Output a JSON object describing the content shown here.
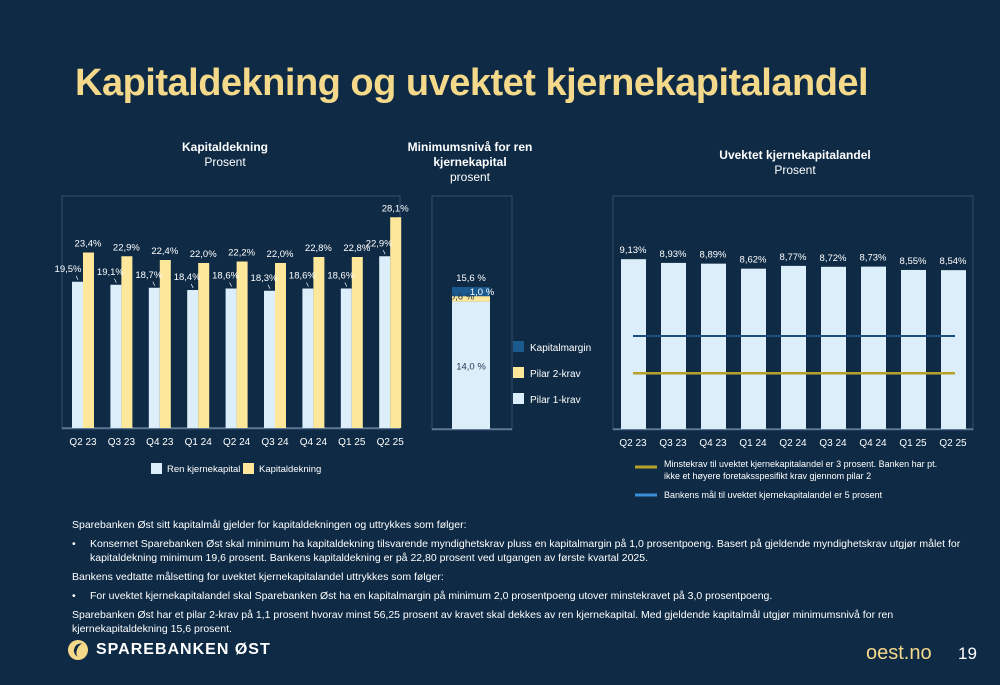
{
  "page": {
    "title": "Kapitaldekning og uvektet kjernekapitalandel",
    "site": "oest.no",
    "page_number": "19",
    "logo_text": "SPAREBANKEN ØST"
  },
  "colors": {
    "background": "#0e2a45",
    "light_blue": "#dceefa",
    "yellow": "#fce79a",
    "dark_blue": "#1a5a8e",
    "gold_line": "#b8a12a",
    "navy_line": "#1d4f7e",
    "title": "#f5d98b"
  },
  "charts_text": {
    "c1_title": "Kapitaldekning",
    "c1_sub": "Prosent",
    "c2_title_1": "Minimumsnivå for ren",
    "c2_title_2": "kjernekapital",
    "c2_sub": "prosent",
    "c3_title": "Uvektet kjernekapitalandel",
    "c3_sub": "Prosent"
  },
  "chart_data": [
    {
      "type": "bar",
      "title": "Kapitaldekning",
      "subtitle": "Prosent",
      "categories": [
        "Q2 23",
        "Q3 23",
        "Q4 23",
        "Q1 24",
        "Q2 24",
        "Q3 24",
        "Q4 24",
        "Q1 25",
        "Q2 25"
      ],
      "series": [
        {
          "name": "Ren kjernekapital",
          "values": [
            19.5,
            19.1,
            18.7,
            18.4,
            18.6,
            18.3,
            18.6,
            18.6,
            22.9
          ],
          "labels": [
            "19,5%",
            "19,1%",
            "18,7%",
            "18,4%",
            "18,6%",
            "18,3%",
            "18,6%",
            "18,6%",
            "22,9%"
          ]
        },
        {
          "name": "Kapitaldekning",
          "values": [
            23.4,
            22.9,
            22.4,
            22.0,
            22.2,
            22.0,
            22.8,
            22.8,
            28.1
          ],
          "labels": [
            "23,4%",
            "22,9%",
            "22,4%",
            "22,0%",
            "22,2%",
            "22,0%",
            "22,8%",
            "22,8%",
            "28,1%"
          ]
        }
      ],
      "legend": "bottom"
    },
    {
      "type": "bar",
      "stacked": true,
      "title": "Minimumsnivå for ren kjernekapital",
      "subtitle": "prosent",
      "total_label": "15,6 %",
      "series": [
        {
          "name": "Pilar 1-krav",
          "value": 14.0,
          "label": "14,0 %"
        },
        {
          "name": "Pilar 2-krav",
          "value": 0.6,
          "label": "0,6 %"
        },
        {
          "name": "Kapitalmargin",
          "value": 1.0,
          "label": "1,0 %"
        }
      ],
      "legend_order": [
        "Kapitalmargin",
        "Pilar 2-krav",
        "Pilar 1-krav"
      ],
      "legend": "right"
    },
    {
      "type": "bar",
      "title": "Uvektet kjernekapitalandel",
      "subtitle": "Prosent",
      "categories": [
        "Q2 23",
        "Q3 23",
        "Q4 23",
        "Q1 24",
        "Q2 24",
        "Q3 24",
        "Q4 24",
        "Q1 25",
        "Q2 25"
      ],
      "values": [
        9.13,
        8.93,
        8.89,
        8.62,
        8.77,
        8.72,
        8.73,
        8.55,
        8.54
      ],
      "labels": [
        "9,13%",
        "8,93%",
        "8,89%",
        "8,62%",
        "8,77%",
        "8,72%",
        "8,73%",
        "8,55%",
        "8,54%"
      ],
      "lines": [
        {
          "name": "Minstekrav til uvektet kjernekapitalandel er 3 prosent. Banken har pt. ikke et høyere foretaksspesifikt krav gjennom pilar 2",
          "value": 3.0
        },
        {
          "name": "Bankens mål til uvektet kjernekapitalandel er 5 prosent",
          "value": 5.0
        }
      ],
      "legend": "bottom"
    }
  ],
  "legend_text": {
    "line1_a": "Minstekrav til uvektet kjernekapitalandel er 3 prosent. Banken har pt.",
    "line1_b": "ikke et høyere foretaksspesifikt krav gjennom pilar 2",
    "line2": "Bankens mål til uvektet kjernekapitalandel er 5 prosent"
  },
  "text": {
    "p1": "Sparebanken Øst sitt kapitalmål gjelder for kapitaldekningen og uttrykkes som følger:",
    "b1": "Konsernet Sparebanken Øst skal minimum ha kapitaldekning tilsvarende myndighetskrav pluss en kapitalmargin på 1,0 prosentpoeng. Basert på gjeldende myndighetskrav utgjør målet for kapitaldekning minimum 19,6 prosent. Bankens kapitaldekning er på 22,80 prosent ved utgangen av første kvartal 2025.",
    "p2": "Bankens vedtatte målsetting for uvektet kjernekapitalandel uttrykkes som følger:",
    "b2": "For uvektet kjernekapitalandel skal Sparebanken Øst ha en kapitalmargin på minimum 2,0 prosentpoeng utover minstekravet på 3,0 prosentpoeng.",
    "p3": "Sparebanken Øst har et pilar 2-krav på 1,1 prosent hvorav minst 56,25 prosent av kravet skal dekkes av ren kjernekapital. Med gjeldende kapitalmål utgjør minimumsnivå for ren kjernekapitaldekning 15,6 prosent.",
    "bullet_char": "•"
  }
}
